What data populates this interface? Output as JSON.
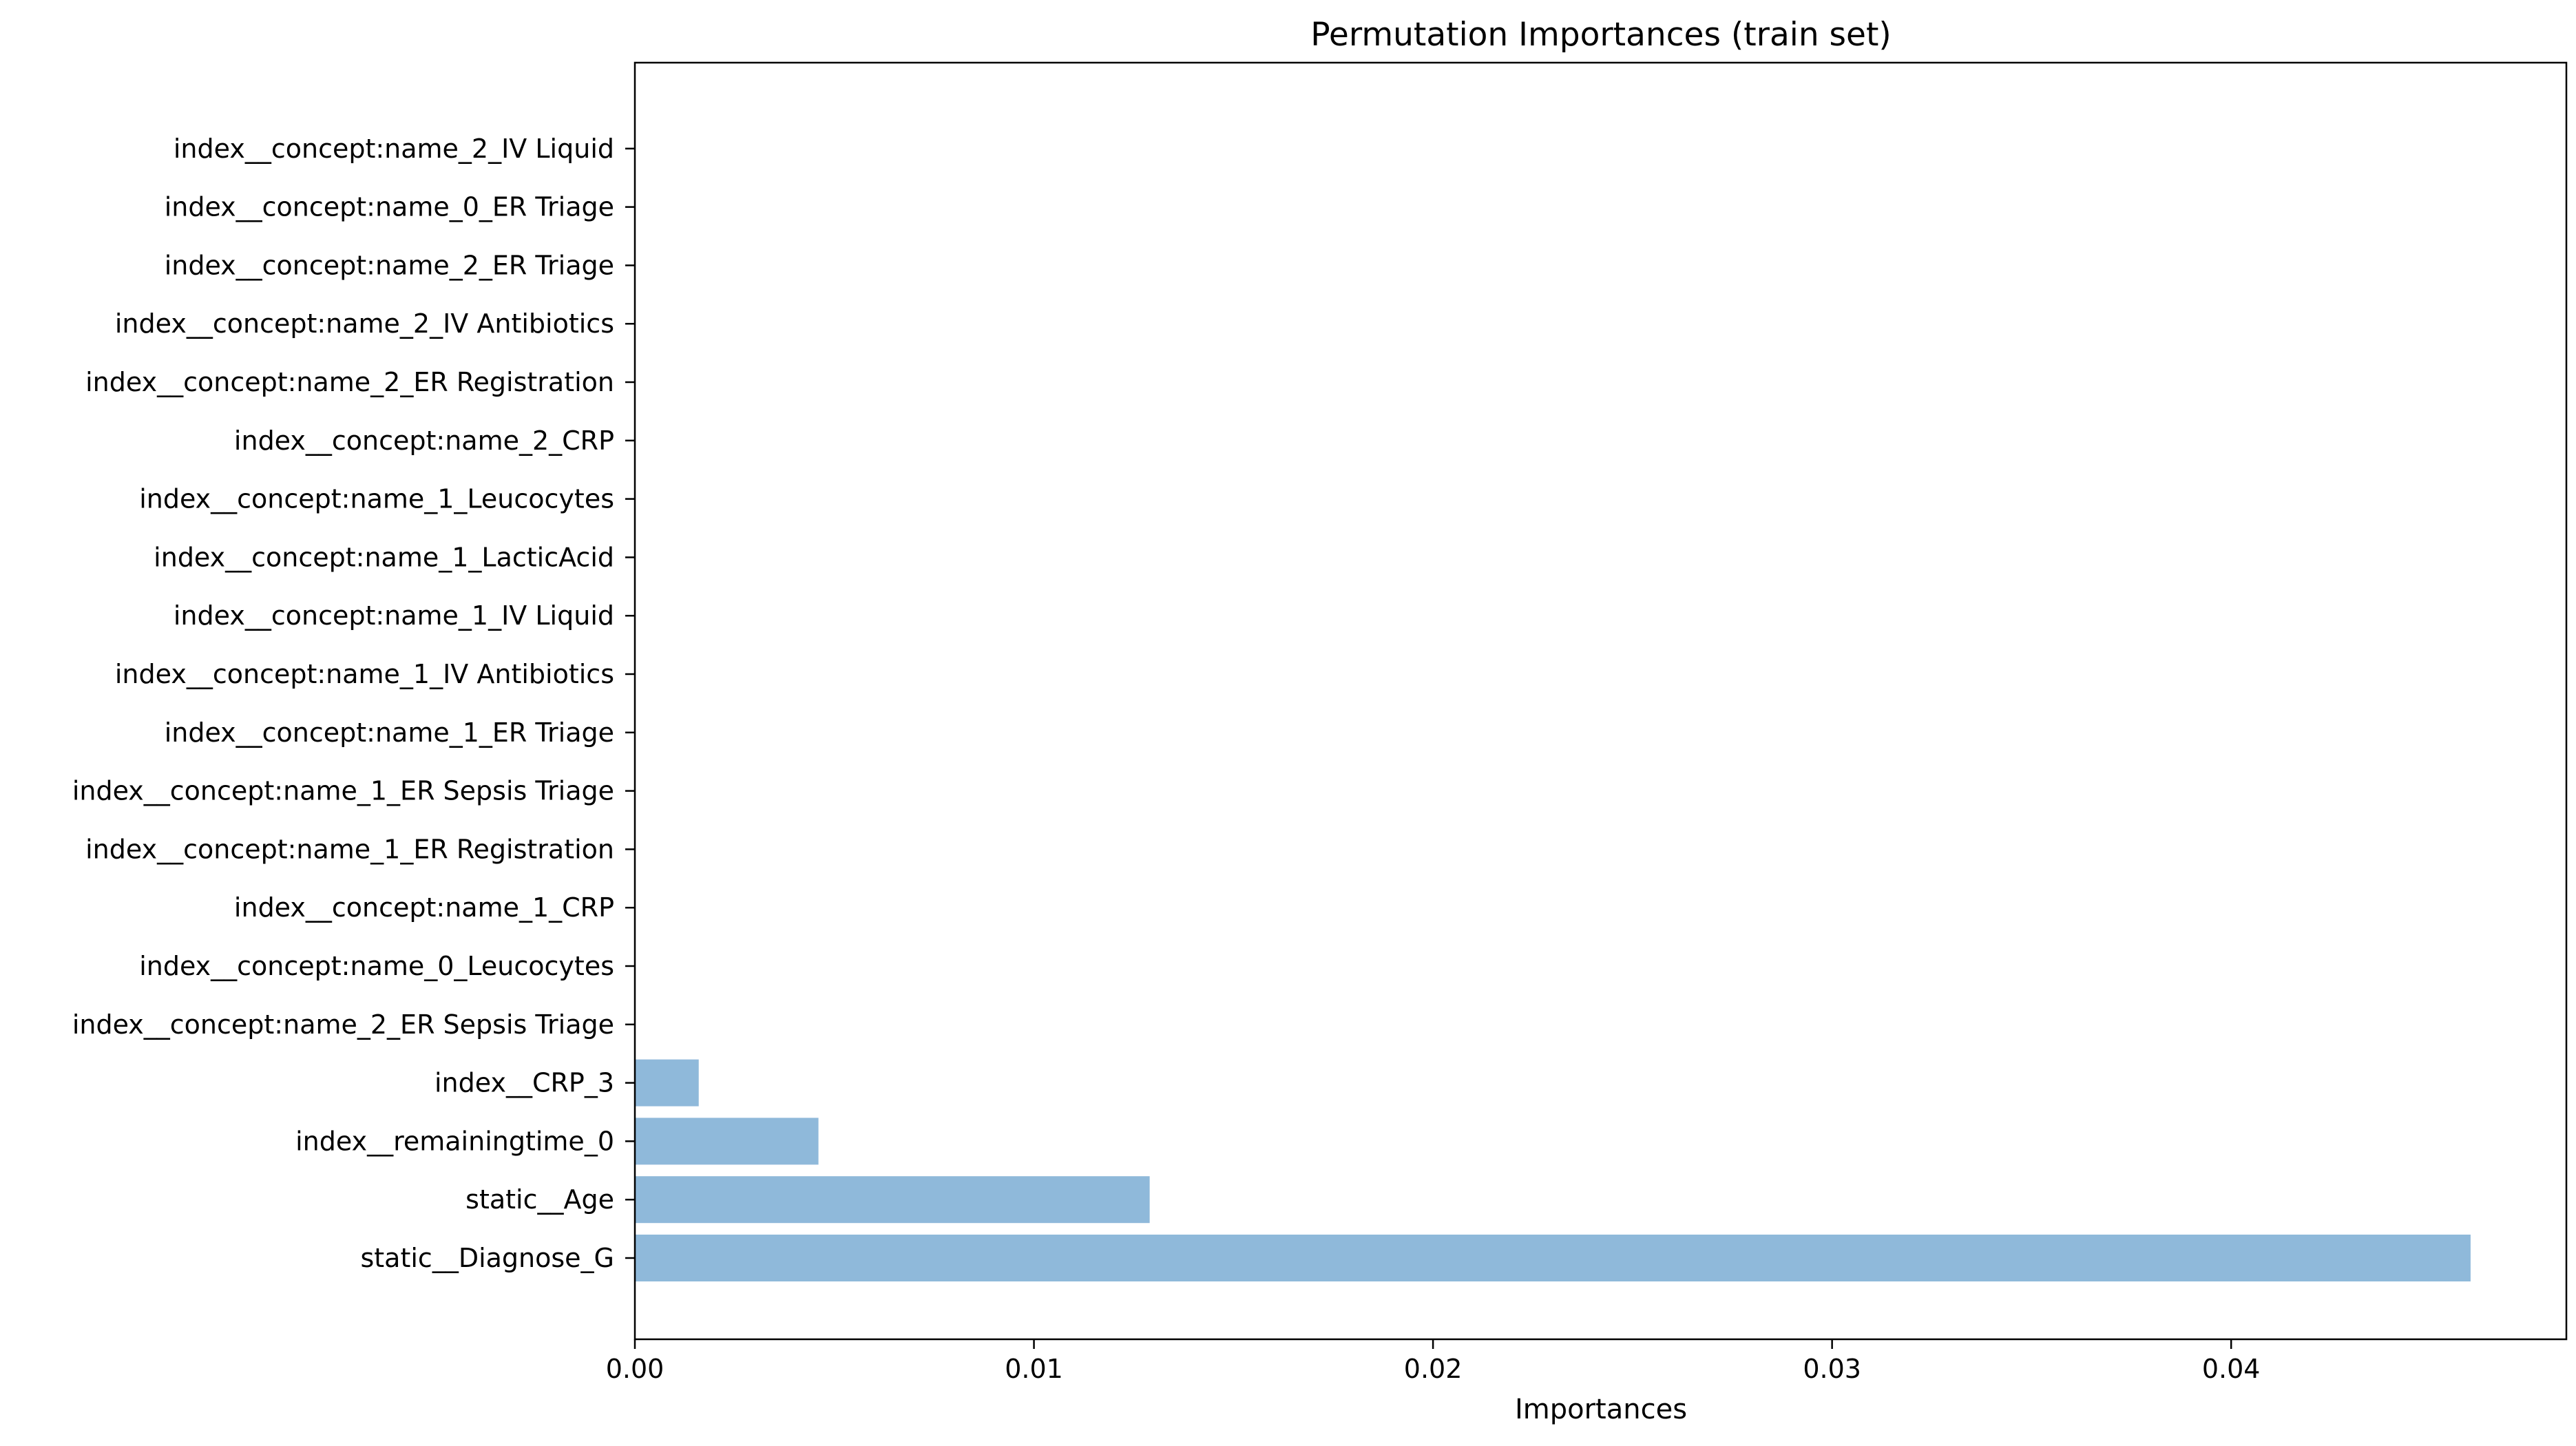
{
  "chart_data": {
    "type": "bar",
    "orientation": "horizontal",
    "title": "Permutation Importances (train set)",
    "xlabel": "Importances",
    "ylabel": "",
    "xlim": [
      0,
      0.0484
    ],
    "xticks": [
      0,
      0.01,
      0.02,
      0.03,
      0.04
    ],
    "xtick_labels": [
      "0.00",
      "0.01",
      "0.02",
      "0.03",
      "0.04"
    ],
    "grid": false,
    "bar_color": "#8fb9da",
    "categories": [
      "static__Diagnose_G",
      "static__Age",
      "index__remainingtime_0",
      "index__CRP_3",
      "index__concept:name_2_ER Sepsis Triage",
      "index__concept:name_0_Leucocytes",
      "index__concept:name_1_CRP",
      "index__concept:name_1_ER Registration",
      "index__concept:name_1_ER Sepsis Triage",
      "index__concept:name_1_ER Triage",
      "index__concept:name_1_IV Antibiotics",
      "index__concept:name_1_IV Liquid",
      "index__concept:name_1_LacticAcid",
      "index__concept:name_1_Leucocytes",
      "index__concept:name_2_CRP",
      "index__concept:name_2_ER Registration",
      "index__concept:name_2_IV Antibiotics",
      "index__concept:name_2_ER Triage",
      "index__concept:name_0_ER Triage",
      "index__concept:name_2_IV Liquid"
    ],
    "values": [
      0.046,
      0.0129,
      0.0046,
      0.0016,
      0,
      0,
      0,
      0,
      0,
      0,
      0,
      0,
      0,
      0,
      0,
      0,
      0,
      0,
      0,
      0
    ]
  }
}
